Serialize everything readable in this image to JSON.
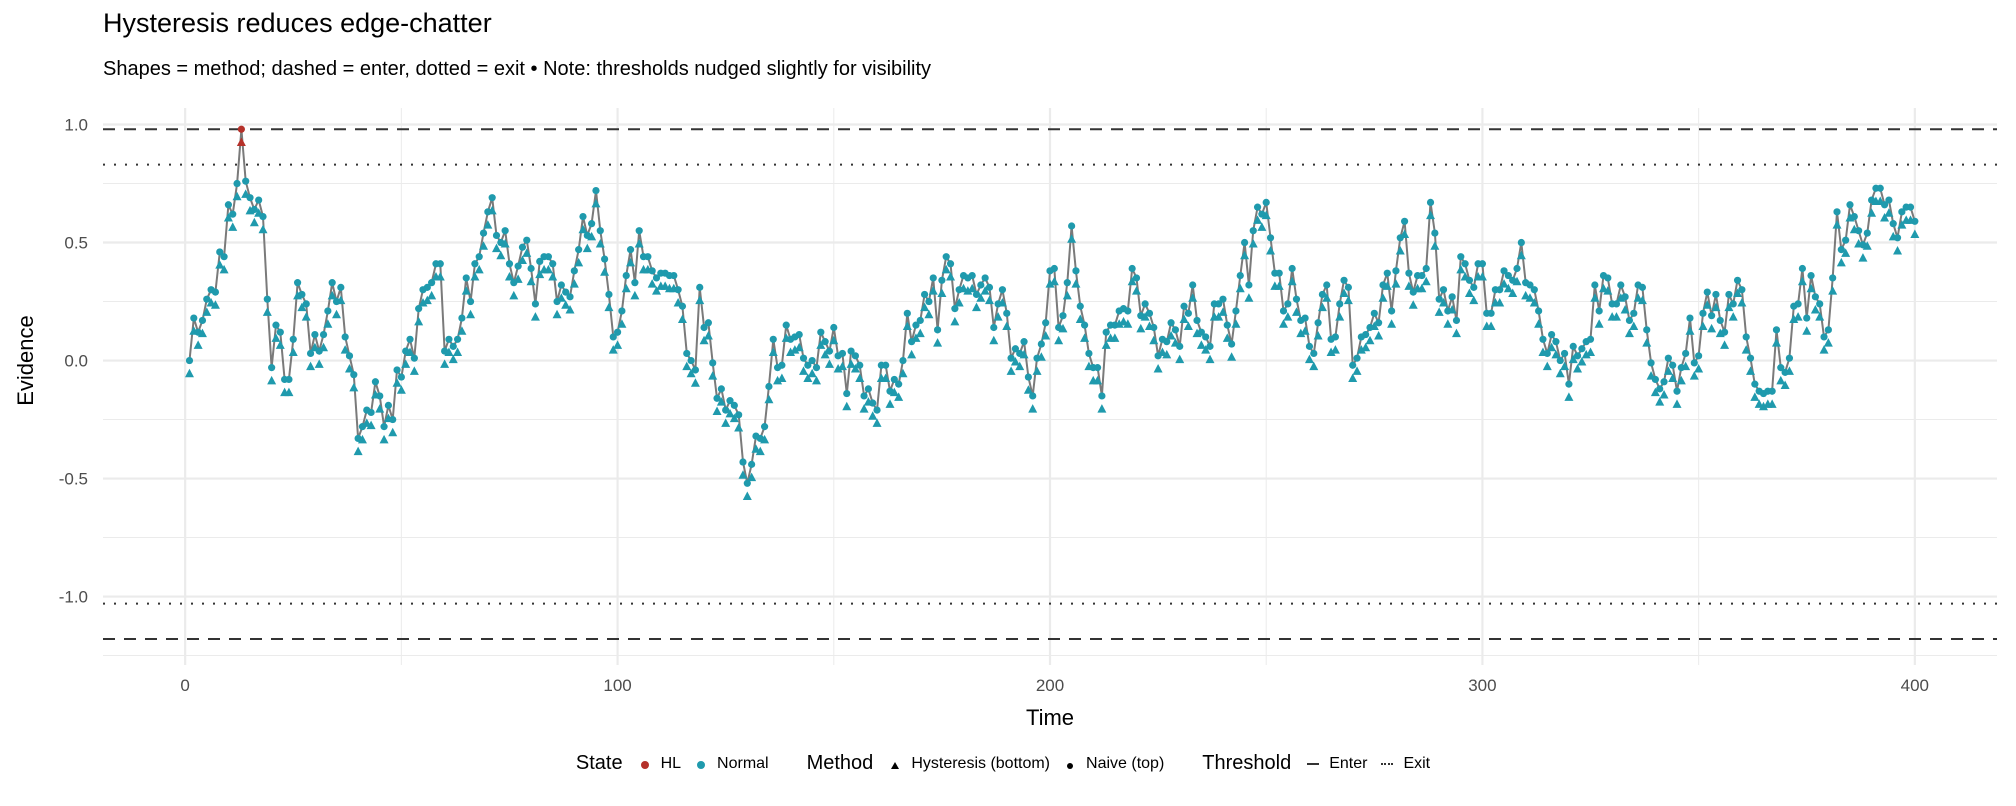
{
  "chart_data": {
    "type": "scatter",
    "title": "Hysteresis reduces edge-chatter",
    "subtitle": "Shapes = method; dashed = enter, dotted = exit • Note: thresholds nudged slightly for visibility",
    "xlabel": "Time",
    "ylabel": "Evidence",
    "xlim": [
      -19,
      419
    ],
    "ylim": [
      -1.29,
      1.07
    ],
    "x_ticks": [
      0,
      100,
      200,
      300,
      400
    ],
    "x_tick_labels": [
      "0",
      "100",
      "200",
      "300",
      "400"
    ],
    "y_ticks": [
      -1.0,
      -0.5,
      0.0,
      0.5,
      1.0
    ],
    "y_tick_labels": [
      "-1.0",
      "-0.5",
      "0.0",
      "0.5",
      "1.0"
    ],
    "grid": true,
    "x_start": 1,
    "evidence": [
      0.0,
      0.18,
      0.12,
      0.17,
      0.26,
      0.3,
      0.29,
      0.46,
      0.44,
      0.66,
      0.62,
      0.75,
      0.98,
      0.76,
      0.69,
      0.64,
      0.68,
      0.61,
      0.26,
      -0.03,
      0.15,
      0.12,
      -0.08,
      -0.08,
      0.09,
      0.33,
      0.28,
      0.24,
      0.03,
      0.11,
      0.04,
      0.11,
      0.21,
      0.33,
      0.25,
      0.31,
      0.1,
      0.02,
      -0.06,
      -0.33,
      -0.28,
      -0.21,
      -0.22,
      -0.09,
      -0.15,
      -0.28,
      -0.19,
      -0.25,
      -0.04,
      -0.07,
      0.04,
      0.09,
      0.01,
      0.22,
      0.3,
      0.31,
      0.33,
      0.41,
      0.41,
      0.04,
      0.09,
      0.06,
      0.09,
      0.18,
      0.35,
      0.25,
      0.41,
      0.44,
      0.54,
      0.63,
      0.69,
      0.53,
      0.5,
      0.55,
      0.41,
      0.33,
      0.4,
      0.48,
      0.51,
      0.39,
      0.24,
      0.42,
      0.44,
      0.44,
      0.41,
      0.25,
      0.32,
      0.29,
      0.27,
      0.38,
      0.47,
      0.61,
      0.53,
      0.58,
      0.72,
      0.55,
      0.43,
      0.28,
      0.1,
      0.12,
      0.21,
      0.36,
      0.47,
      0.33,
      0.55,
      0.44,
      0.44,
      0.38,
      0.35,
      0.37,
      0.37,
      0.36,
      0.36,
      0.3,
      0.23,
      0.03,
      0.0,
      -0.04,
      0.31,
      0.14,
      0.16,
      -0.01,
      -0.16,
      -0.12,
      -0.21,
      -0.17,
      -0.19,
      -0.23,
      -0.43,
      -0.52,
      -0.44,
      -0.32,
      -0.33,
      -0.28,
      -0.11,
      0.09,
      -0.03,
      -0.02,
      0.15,
      0.09,
      0.1,
      0.11,
      0.01,
      -0.02,
      0.0,
      -0.03,
      0.12,
      0.08,
      0.04,
      0.14,
      0.02,
      0.03,
      -0.14,
      0.04,
      0.02,
      -0.02,
      -0.15,
      -0.12,
      -0.18,
      -0.21,
      -0.02,
      -0.02,
      -0.13,
      -0.08,
      -0.1,
      0.0,
      0.2,
      0.08,
      0.15,
      0.17,
      0.28,
      0.25,
      0.35,
      0.13,
      0.34,
      0.44,
      0.41,
      0.22,
      0.3,
      0.36,
      0.35,
      0.36,
      0.28,
      0.32,
      0.35,
      0.31,
      0.14,
      0.24,
      0.3,
      0.2,
      0.01,
      0.05,
      0.03,
      0.08,
      -0.07,
      -0.15,
      0.01,
      0.07,
      0.16,
      0.38,
      0.39,
      0.14,
      0.19,
      0.33,
      0.57,
      0.38,
      0.23,
      0.15,
      0.03,
      -0.03,
      -0.03,
      -0.15,
      0.12,
      0.15,
      0.15,
      0.21,
      0.22,
      0.21,
      0.39,
      0.35,
      0.19,
      0.24,
      0.2,
      0.14,
      0.02,
      0.09,
      0.08,
      0.16,
      0.13,
      0.06,
      0.23,
      0.2,
      0.32,
      0.17,
      0.12,
      0.1,
      0.06,
      0.24,
      0.24,
      0.26,
      0.15,
      0.07,
      0.21,
      0.36,
      0.5,
      0.32,
      0.55,
      0.65,
      0.62,
      0.67,
      0.52,
      0.37,
      0.37,
      0.21,
      0.24,
      0.39,
      0.26,
      0.17,
      0.18,
      0.06,
      0.03,
      0.16,
      0.28,
      0.32,
      0.09,
      0.1,
      0.24,
      0.34,
      0.31,
      -0.02,
      0.01,
      0.1,
      0.11,
      0.14,
      0.2,
      0.16,
      0.32,
      0.37,
      0.21,
      0.38,
      0.52,
      0.59,
      0.37,
      0.29,
      0.36,
      0.36,
      0.39,
      0.67,
      0.54,
      0.26,
      0.3,
      0.21,
      0.27,
      0.17,
      0.44,
      0.41,
      0.34,
      0.31,
      0.41,
      0.41,
      0.2,
      0.2,
      0.3,
      0.3,
      0.38,
      0.36,
      0.34,
      0.39,
      0.5,
      0.33,
      0.32,
      0.3,
      0.21,
      0.09,
      0.03,
      0.11,
      0.08,
      0.0,
      0.03,
      -0.1,
      0.06,
      0.02,
      0.05,
      0.08,
      0.09,
      0.32,
      0.21,
      0.36,
      0.35,
      0.24,
      0.24,
      0.32,
      0.27,
      0.17,
      0.2,
      0.32,
      0.31,
      0.13,
      -0.01,
      -0.08,
      -0.12,
      -0.09,
      0.01,
      -0.02,
      -0.13,
      -0.03,
      0.03,
      0.18,
      -0.01,
      0.02,
      0.2,
      0.29,
      0.19,
      0.28,
      0.17,
      0.12,
      0.28,
      0.24,
      0.34,
      0.3,
      0.1,
      0.01,
      -0.1,
      -0.13,
      -0.14,
      -0.13,
      -0.13,
      0.13,
      -0.03,
      -0.05,
      0.01,
      0.23,
      0.24,
      0.39,
      0.18,
      0.36,
      0.27,
      0.24,
      0.1,
      0.13,
      0.35,
      0.63,
      0.47,
      0.51,
      0.66,
      0.61,
      0.55,
      0.49,
      0.54,
      0.68,
      0.73,
      0.73,
      0.66,
      0.68,
      0.58,
      0.52,
      0.63,
      0.65,
      0.65,
      0.59
    ],
    "hl_times": [
      13
    ],
    "thresholds": [
      {
        "name": "Enter",
        "style": "dashed",
        "value": 0.98
      },
      {
        "name": "Exit",
        "style": "dotted",
        "value": 0.83
      },
      {
        "name": "Exit",
        "style": "dotted",
        "value": -1.03
      },
      {
        "name": "Enter",
        "style": "dashed",
        "value": -1.18
      }
    ],
    "colors": {
      "HL": "#b5312a",
      "Normal": "#1f9aad",
      "line": "#7a7a7a",
      "threshold": "#333333",
      "grid": "#ebebeb"
    },
    "legend": {
      "placement": "bottom",
      "state": {
        "title": "State",
        "items": [
          "HL",
          "Normal"
        ]
      },
      "method": {
        "title": "Method",
        "items": [
          "Hysteresis (bottom)",
          "Naive (top)"
        ]
      },
      "threshold": {
        "title": "Threshold",
        "items": [
          "Enter",
          "Exit"
        ]
      }
    }
  }
}
